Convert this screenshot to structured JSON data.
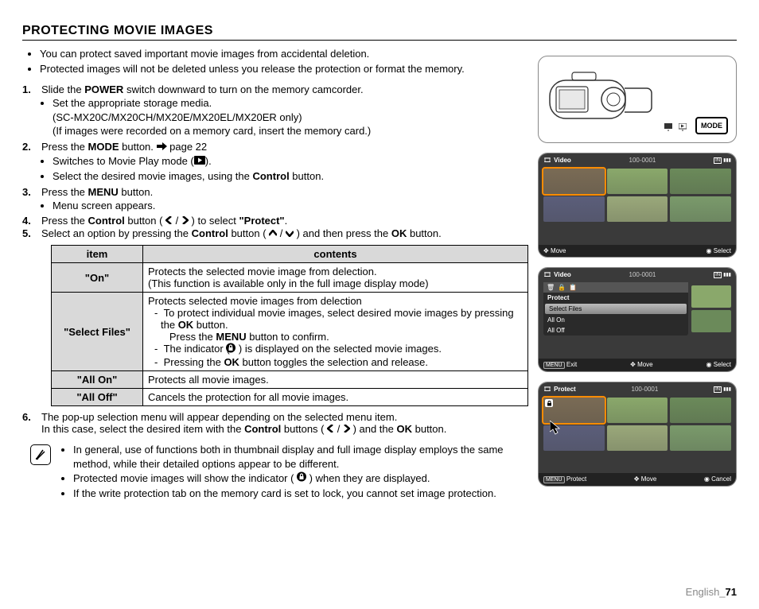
{
  "title": "PROTECTING MOVIE IMAGES",
  "top_bullets": [
    "You can protect saved important movie images from accidental deletion.",
    "Protected images will not be deleted unless you release the protection or format the memory."
  ],
  "steps": {
    "s1": {
      "num": "1.",
      "text_a": "Slide the ",
      "bold_a": "POWER",
      "text_b": " switch downward to turn on the memory camcorder.",
      "sub": [
        "Set the appropriate storage media.",
        "(SC-MX20C/MX20CH/MX20E/MX20EL/MX20ER only)",
        "(If images were recorded on a memory card, insert the memory card.)"
      ]
    },
    "s2": {
      "num": "2.",
      "text_a": "Press the ",
      "bold_a": "MODE",
      "text_b": " button. ",
      "page_ref": "page 22",
      "sub_a": "Switches to Movie Play mode (",
      "sub_a_end": ").",
      "sub_b_a": "Select the desired movie images, using the ",
      "sub_b_bold": "Control",
      "sub_b_b": " button."
    },
    "s3": {
      "num": "3.",
      "text_a": "Press the ",
      "bold_a": "MENU",
      "text_b": " button.",
      "sub": "Menu screen appears."
    },
    "s4": {
      "num": "4.",
      "text_a": "Press the ",
      "bold_a": "Control",
      "text_b": " button ( ",
      "text_c": " / ",
      "text_d": " ) to select ",
      "bold_b": "\"Protect\"",
      "text_e": "."
    },
    "s5": {
      "num": "5.",
      "text_a": "Select an option by pressing the ",
      "bold_a": "Control",
      "text_b": " button ( ",
      "text_c": " / ",
      "text_d": " ) and then press the ",
      "bold_b": "OK",
      "text_e": " button."
    },
    "s6": {
      "num": "6.",
      "text_a": "The pop-up selection menu will appear depending on the selected menu item.",
      "text_b": "In this case, select the desired item with the ",
      "bold_a": "Control",
      "text_c": " buttons ( ",
      "text_d": " / ",
      "text_e": " )  and the ",
      "bold_b": "OK",
      "text_f": " button."
    }
  },
  "table": {
    "head_item": "item",
    "head_contents": "contents",
    "rows": {
      "on": {
        "item": "\"On\"",
        "line1": "Protects the selected movie image from delection.",
        "line2": "(This function is available only in the full image display mode)"
      },
      "select": {
        "item": "\"Select Files\"",
        "line1": "Protects selected movie images from delection",
        "d1a": "To protect individual movie images, select desired movie images by pressing the ",
        "d1bold": "OK",
        "d1b": " button.",
        "d2a": "Press the ",
        "d2bold": "MENU",
        "d2b": " button to confirm.",
        "d3a": "The indicator ( ",
        "d3b": " ) is displayed on the selected movie images.",
        "d4a": "Pressing the ",
        "d4bold": "OK",
        "d4b": " button toggles the selection and release."
      },
      "allon": {
        "item": "\"All On\"",
        "text": "Protects all movie images."
      },
      "alloff": {
        "item": "\"All Off\"",
        "text": "Cancels the protection for all movie images."
      }
    }
  },
  "notes": {
    "n1": "In general, use of functions both in thumbnail display and full image display employs the same method, while their detailed options appear to be different.",
    "n2a": "Protected movie images will show the indicator ( ",
    "n2b": " ) when they are displayed.",
    "n3": "If the write protection tab on the memory card is set to lock, you cannot set image protection."
  },
  "screens": {
    "video_label": "Video",
    "file_num": "100-0001",
    "move": "Move",
    "select": "Select",
    "exit": "Exit",
    "protect": "Protect",
    "cancel": "Cancel",
    "menu_items": {
      "title": "Protect",
      "sel": "Select Files",
      "allon": "All On",
      "alloff": "All Off"
    },
    "mode_label": "MODE",
    "menu_btn": "MENU"
  },
  "footer": {
    "lang": "English_",
    "page": "71"
  },
  "colors": {
    "thumb_palette": [
      "#7a6b55",
      "#8aa86b",
      "#6b8a5a",
      "#5b5e7a",
      "#9aa87a",
      "#7a9a6b"
    ],
    "screen_bg": "#3a3a3a",
    "th_bg": "#d9d9d9"
  }
}
